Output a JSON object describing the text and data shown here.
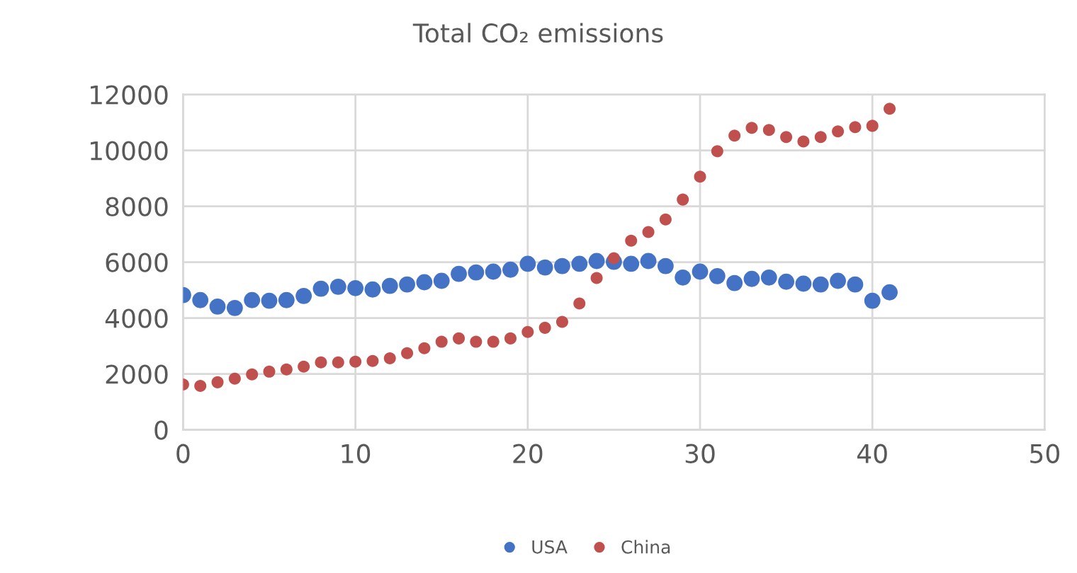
{
  "chart_data": {
    "type": "scatter",
    "title": "Total CO₂ emissions",
    "x": [
      0,
      1,
      2,
      3,
      4,
      5,
      6,
      7,
      8,
      9,
      10,
      11,
      12,
      13,
      14,
      15,
      16,
      17,
      18,
      19,
      20,
      21,
      22,
      23,
      24,
      25,
      26,
      27,
      28,
      29,
      30,
      31,
      32,
      33,
      34,
      35,
      36,
      37,
      38,
      39,
      40,
      41
    ],
    "series": [
      {
        "name": "USA",
        "color": "#4472c4",
        "values": [
          4820,
          4640,
          4410,
          4360,
          4640,
          4620,
          4640,
          4790,
          5050,
          5120,
          5070,
          5020,
          5150,
          5200,
          5280,
          5330,
          5580,
          5630,
          5660,
          5730,
          5940,
          5810,
          5860,
          5940,
          6040,
          6010,
          5940,
          6040,
          5860,
          5450,
          5660,
          5500,
          5250,
          5400,
          5450,
          5300,
          5230,
          5200,
          5330,
          5200,
          4620,
          4920
        ]
      },
      {
        "name": "China",
        "color": "#c0504d",
        "values": [
          1620,
          1570,
          1700,
          1830,
          1980,
          2080,
          2160,
          2260,
          2410,
          2410,
          2440,
          2460,
          2560,
          2740,
          2920,
          3150,
          3270,
          3150,
          3150,
          3270,
          3500,
          3650,
          3860,
          4520,
          5430,
          6140,
          6770,
          7080,
          7530,
          8240,
          9060,
          9970,
          10530,
          10810,
          10730,
          10480,
          10320,
          10480,
          10680,
          10830,
          10880,
          11490
        ]
      }
    ],
    "xlim": [
      0,
      50
    ],
    "xticks": [
      0,
      10,
      20,
      30,
      40,
      50
    ],
    "ylim": [
      0,
      12000
    ],
    "yticks": [
      0,
      2000,
      4000,
      6000,
      8000,
      10000,
      12000
    ],
    "grid": true,
    "legend": "bottom",
    "marker": "circle"
  }
}
